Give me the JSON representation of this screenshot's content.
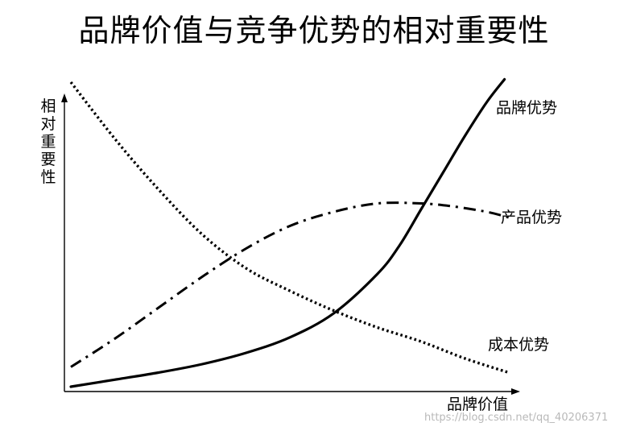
{
  "chart_data": {
    "type": "line",
    "title": "品牌价值与竞争优势的相对重要性",
    "xlabel": "品牌价值",
    "ylabel": "相对重要性",
    "xlim": [
      0,
      10
    ],
    "ylim": [
      0,
      10
    ],
    "grid": false,
    "legend": "inline-right",
    "series": [
      {
        "name": "品牌优势",
        "style": "solid",
        "color": "#000000",
        "x": [
          0,
          1,
          2,
          3,
          4,
          5,
          6,
          7,
          7.5,
          8,
          8.5,
          9,
          9.5,
          9.9
        ],
        "y": [
          0.0,
          0.25,
          0.5,
          0.8,
          1.2,
          1.75,
          2.6,
          4.0,
          5.0,
          6.3,
          7.6,
          8.9,
          10.1,
          10.9
        ]
      },
      {
        "name": "产品优势",
        "style": "dashdot",
        "color": "#000000",
        "x": [
          0,
          1,
          2,
          3,
          4,
          5,
          6,
          7,
          8,
          8.7,
          9.5,
          10
        ],
        "y": [
          0.7,
          1.7,
          2.8,
          3.9,
          4.9,
          5.7,
          6.2,
          6.5,
          6.5,
          6.4,
          6.2,
          6.0
        ]
      },
      {
        "name": "成本优势",
        "style": "dotted",
        "color": "#000000",
        "x": [
          0,
          1,
          2,
          3,
          4,
          5,
          6,
          7,
          8,
          9,
          10
        ],
        "y": [
          10.8,
          8.8,
          7.0,
          5.4,
          4.2,
          3.4,
          2.7,
          2.1,
          1.6,
          1.0,
          0.5
        ]
      }
    ],
    "watermark": "https://blog.csdn.net/qq_40206371"
  }
}
